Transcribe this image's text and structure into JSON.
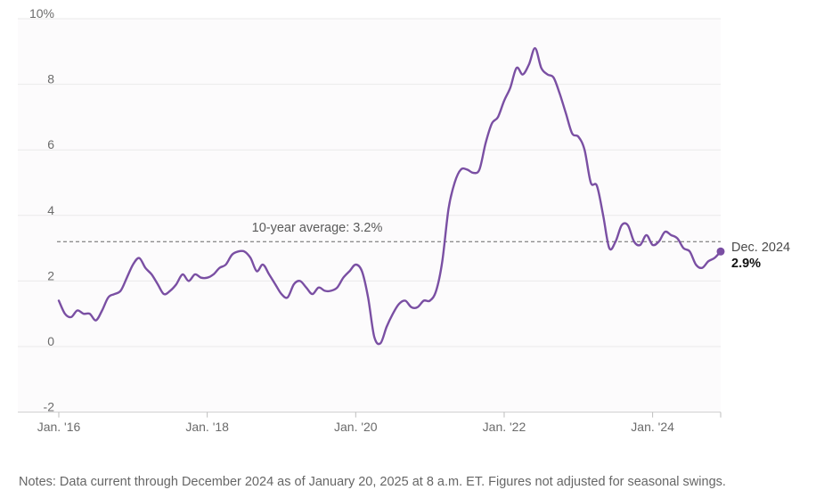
{
  "chart_data": {
    "type": "line",
    "title": "",
    "xlabel": "",
    "ylabel": "",
    "ylim": [
      -2,
      10
    ],
    "y_ticks": [
      -2,
      0,
      2,
      4,
      6,
      8,
      10
    ],
    "y_tick_labels": [
      "-2",
      "0",
      "2",
      "4",
      "6",
      "8",
      "10%"
    ],
    "x_ticks": [
      2016,
      2018,
      2020,
      2022,
      2024
    ],
    "x_tick_labels": [
      "Jan. '16",
      "Jan. '18",
      "Jan. '20",
      "Jan. '22",
      "Jan. '24"
    ],
    "grid": true,
    "line_color": "#7a4fa3",
    "reference_line": {
      "value": 3.2,
      "label": "10-year average: 3.2%"
    },
    "end_annotation": {
      "label": "Dec. 2024",
      "value_label": "2.9%"
    },
    "series": [
      {
        "name": "",
        "x": [
          "2016-01",
          "2016-02",
          "2016-03",
          "2016-04",
          "2016-05",
          "2016-06",
          "2016-07",
          "2016-08",
          "2016-09",
          "2016-10",
          "2016-11",
          "2016-12",
          "2017-01",
          "2017-02",
          "2017-03",
          "2017-04",
          "2017-05",
          "2017-06",
          "2017-07",
          "2017-08",
          "2017-09",
          "2017-10",
          "2017-11",
          "2017-12",
          "2018-01",
          "2018-02",
          "2018-03",
          "2018-04",
          "2018-05",
          "2018-06",
          "2018-07",
          "2018-08",
          "2018-09",
          "2018-10",
          "2018-11",
          "2018-12",
          "2019-01",
          "2019-02",
          "2019-03",
          "2019-04",
          "2019-05",
          "2019-06",
          "2019-07",
          "2019-08",
          "2019-09",
          "2019-10",
          "2019-11",
          "2019-12",
          "2020-01",
          "2020-02",
          "2020-03",
          "2020-04",
          "2020-05",
          "2020-06",
          "2020-07",
          "2020-08",
          "2020-09",
          "2020-10",
          "2020-11",
          "2020-12",
          "2021-01",
          "2021-02",
          "2021-03",
          "2021-04",
          "2021-05",
          "2021-06",
          "2021-07",
          "2021-08",
          "2021-09",
          "2021-10",
          "2021-11",
          "2021-12",
          "2022-01",
          "2022-02",
          "2022-03",
          "2022-04",
          "2022-05",
          "2022-06",
          "2022-07",
          "2022-08",
          "2022-09",
          "2022-10",
          "2022-11",
          "2022-12",
          "2023-01",
          "2023-02",
          "2023-03",
          "2023-04",
          "2023-05",
          "2023-06",
          "2023-07",
          "2023-08",
          "2023-09",
          "2023-10",
          "2023-11",
          "2023-12",
          "2024-01",
          "2024-02",
          "2024-03",
          "2024-04",
          "2024-05",
          "2024-06",
          "2024-07",
          "2024-08",
          "2024-09",
          "2024-10",
          "2024-11",
          "2024-12"
        ],
        "y": [
          1.4,
          1.0,
          0.9,
          1.1,
          1.0,
          1.0,
          0.8,
          1.1,
          1.5,
          1.6,
          1.7,
          2.1,
          2.5,
          2.7,
          2.4,
          2.2,
          1.9,
          1.6,
          1.7,
          1.9,
          2.2,
          2.0,
          2.2,
          2.1,
          2.1,
          2.2,
          2.4,
          2.5,
          2.8,
          2.9,
          2.9,
          2.7,
          2.3,
          2.5,
          2.2,
          1.9,
          1.6,
          1.5,
          1.9,
          2.0,
          1.8,
          1.6,
          1.8,
          1.7,
          1.7,
          1.8,
          2.1,
          2.3,
          2.5,
          2.3,
          1.5,
          0.3,
          0.1,
          0.6,
          1.0,
          1.3,
          1.4,
          1.2,
          1.2,
          1.4,
          1.4,
          1.7,
          2.6,
          4.2,
          5.0,
          5.4,
          5.4,
          5.3,
          5.4,
          6.2,
          6.8,
          7.0,
          7.5,
          7.9,
          8.5,
          8.3,
          8.6,
          9.1,
          8.5,
          8.3,
          8.2,
          7.7,
          7.1,
          6.5,
          6.4,
          6.0,
          5.0,
          4.9,
          4.0,
          3.0,
          3.2,
          3.7,
          3.7,
          3.2,
          3.1,
          3.4,
          3.1,
          3.2,
          3.5,
          3.4,
          3.3,
          3.0,
          2.9,
          2.5,
          2.4,
          2.6,
          2.7,
          2.9
        ]
      }
    ]
  },
  "notes": "Notes: Data current through December 2024 as of January 20, 2025 at 8 a.m. ET. Figures not adjusted for seasonal swings."
}
